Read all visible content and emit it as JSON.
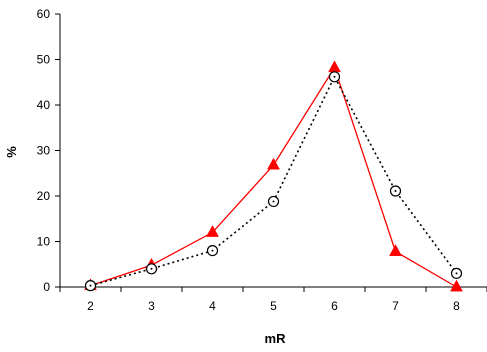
{
  "chart_data": {
    "type": "line",
    "xlabel": "mR",
    "ylabel": "%",
    "x": [
      2,
      3,
      4,
      5,
      6,
      7,
      8
    ],
    "xlim": [
      1.5,
      8.5
    ],
    "ylim": [
      0,
      60
    ],
    "x_ticks": [
      "2",
      "3",
      "4",
      "5",
      "6",
      "7",
      "8"
    ],
    "y_ticks": [
      "0",
      "10",
      "20",
      "30",
      "40",
      "50",
      "60"
    ],
    "grid": false,
    "legend": "none",
    "series": [
      {
        "marker": "triangle-filled",
        "line": "solid",
        "color": "#ff0000",
        "values": [
          0.3,
          4.8,
          12,
          26.8,
          48.2,
          7.8,
          0
        ]
      },
      {
        "marker": "circle-open-dot",
        "line": "dotted",
        "color": "#000000",
        "values": [
          0.3,
          4,
          8,
          18.8,
          46.2,
          21.1,
          3
        ]
      }
    ]
  }
}
